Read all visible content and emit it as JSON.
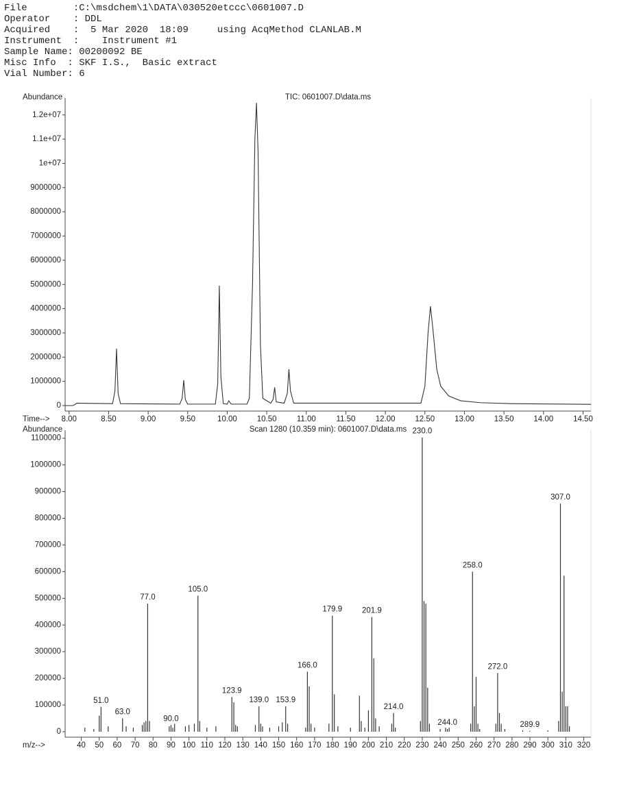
{
  "header": {
    "lines": [
      "File        :C:\\msdchem\\1\\DATA\\030520etccc\\0601007.D",
      "Operator    : DDL",
      "Acquired    :  5 Mar 2020  18:09     using AcqMethod CLANLAB.M",
      "Instrument  :    Instrument #1",
      "Sample Name: 00200092 BE",
      "Misc Info  : SKF I.S.,  Basic extract",
      "Vial Number: 6"
    ]
  },
  "chart_data": [
    {
      "type": "line",
      "title": "TIC: 0601007.D\\data.ms",
      "ylabel": "Abundance",
      "xlabel": "Time-->",
      "color": "#333333",
      "xlim": [
        7.95,
        14.6
      ],
      "ylim": [
        0,
        12700000
      ],
      "xticks": [
        {
          "value": 8,
          "label": "8.00"
        },
        {
          "value": 8.5,
          "label": "8.50"
        },
        {
          "value": 9,
          "label": "9.00"
        },
        {
          "value": 9.5,
          "label": "9.50"
        },
        {
          "value": 10,
          "label": "10.00"
        },
        {
          "value": 10.5,
          "label": "10.50"
        },
        {
          "value": 11,
          "label": "11.00"
        },
        {
          "value": 11.5,
          "label": "11.50"
        },
        {
          "value": 12,
          "label": "12.00"
        },
        {
          "value": 12.5,
          "label": "12.50"
        },
        {
          "value": 13,
          "label": "13.00"
        },
        {
          "value": 13.5,
          "label": "13.50"
        },
        {
          "value": 14,
          "label": "14.00"
        },
        {
          "value": 14.5,
          "label": "14.50"
        }
      ],
      "yticks": [
        0,
        1000000,
        2000000,
        3000000,
        4000000,
        5000000,
        6000000,
        7000000,
        8000000,
        9000000,
        {
          "value": 10000000,
          "label": "1e+07"
        },
        {
          "value": 11000000,
          "label": "1.1e+07"
        },
        {
          "value": 12000000,
          "label": "1.2e+07"
        }
      ],
      "x": [
        7.95,
        8.05,
        8.1,
        8.55,
        8.58,
        8.6,
        8.62,
        8.65,
        9.4,
        9.43,
        9.45,
        9.47,
        9.5,
        9.85,
        9.88,
        9.9,
        9.92,
        9.95,
        10.0,
        10.02,
        10.05,
        10.25,
        10.28,
        10.32,
        10.35,
        10.37,
        10.39,
        10.42,
        10.45,
        10.55,
        10.58,
        10.6,
        10.62,
        10.72,
        10.76,
        10.78,
        10.8,
        10.84,
        12.45,
        12.5,
        12.54,
        12.57,
        12.6,
        12.65,
        12.7,
        12.8,
        12.95,
        13.2,
        13.6,
        14.6
      ],
      "values": [
        0,
        0,
        100000,
        80000,
        600000,
        2350000,
        500000,
        80000,
        60000,
        300000,
        1050000,
        250000,
        60000,
        60000,
        900000,
        4950000,
        1200000,
        80000,
        60000,
        200000,
        60000,
        60000,
        300000,
        5000000,
        11000000,
        12500000,
        10500000,
        2500000,
        300000,
        100000,
        250000,
        750000,
        150000,
        100000,
        500000,
        1500000,
        600000,
        100000,
        100000,
        800000,
        3000000,
        4100000,
        3200000,
        1500000,
        800000,
        400000,
        200000,
        120000,
        80000,
        50000
      ]
    },
    {
      "type": "bar",
      "title": "Scan 1280 (10.359 min): 0601007.D\\data.ms",
      "ylabel": "Abundance",
      "xlabel": "m/z-->",
      "color": "#333333",
      "xlim": [
        31,
        324
      ],
      "ylim": [
        0,
        1130000
      ],
      "xticks": [
        40,
        50,
        60,
        70,
        80,
        90,
        100,
        110,
        120,
        130,
        140,
        150,
        160,
        170,
        180,
        190,
        200,
        210,
        220,
        230,
        240,
        250,
        260,
        270,
        280,
        290,
        300,
        310,
        320
      ],
      "yticks": [
        0,
        100000,
        200000,
        300000,
        400000,
        500000,
        600000,
        700000,
        800000,
        900000,
        1000000,
        1100000
      ],
      "x": [
        42,
        47,
        50,
        51,
        55,
        63,
        65,
        69,
        74,
        75,
        76,
        77,
        78,
        89,
        90,
        91,
        92,
        98,
        100,
        103,
        105,
        106,
        110,
        115,
        123.9,
        125,
        126,
        127,
        137,
        139,
        140,
        141,
        145,
        150,
        152,
        153.9,
        155,
        165,
        166,
        167,
        168,
        170,
        178,
        179.9,
        181,
        183,
        190,
        195,
        196,
        198,
        200,
        201.9,
        203,
        204,
        206,
        213,
        214,
        215,
        229,
        230,
        231,
        232,
        233,
        234,
        240,
        243,
        244,
        245,
        257,
        258,
        259,
        260,
        261,
        262,
        271,
        272,
        273,
        274,
        276,
        286,
        289.9,
        300,
        306,
        307,
        308,
        309,
        310,
        311,
        312
      ],
      "values": [
        15000,
        10000,
        60000,
        93000,
        20000,
        50000,
        20000,
        15000,
        25000,
        35000,
        40000,
        480000,
        40000,
        20000,
        25000,
        15000,
        30000,
        20000,
        25000,
        30000,
        510000,
        40000,
        15000,
        20000,
        130000,
        110000,
        25000,
        20000,
        25000,
        95000,
        30000,
        20000,
        15000,
        20000,
        35000,
        95000,
        30000,
        15000,
        225000,
        170000,
        30000,
        15000,
        30000,
        435000,
        140000,
        20000,
        15000,
        135000,
        40000,
        15000,
        80000,
        430000,
        275000,
        50000,
        20000,
        30000,
        70000,
        15000,
        40000,
        1103000,
        490000,
        480000,
        165000,
        30000,
        10000,
        15000,
        10000,
        15000,
        30000,
        600000,
        95000,
        205000,
        30000,
        10000,
        30000,
        220000,
        70000,
        30000,
        10000,
        5000,
        3000,
        5000,
        40000,
        855000,
        150000,
        585000,
        95000,
        95000,
        20000
      ],
      "x_labels": [
        null,
        null,
        null,
        "51.0",
        null,
        "63.0",
        null,
        null,
        null,
        null,
        null,
        "77.0",
        null,
        null,
        "90.0",
        null,
        null,
        null,
        null,
        null,
        "105.0",
        null,
        null,
        null,
        "123.9",
        null,
        null,
        null,
        null,
        "139.0",
        null,
        null,
        null,
        null,
        null,
        "153.9",
        null,
        null,
        "166.0",
        null,
        null,
        null,
        null,
        "179.9",
        null,
        null,
        null,
        null,
        null,
        null,
        null,
        "201.9",
        null,
        null,
        null,
        null,
        "214.0",
        null,
        null,
        "230.0",
        null,
        null,
        null,
        null,
        null,
        null,
        "244.0",
        null,
        null,
        "258.0",
        null,
        null,
        null,
        null,
        null,
        "272.0",
        null,
        null,
        null,
        null,
        "289.9",
        null,
        null,
        "307.0",
        null,
        null,
        null,
        null,
        null
      ]
    }
  ]
}
